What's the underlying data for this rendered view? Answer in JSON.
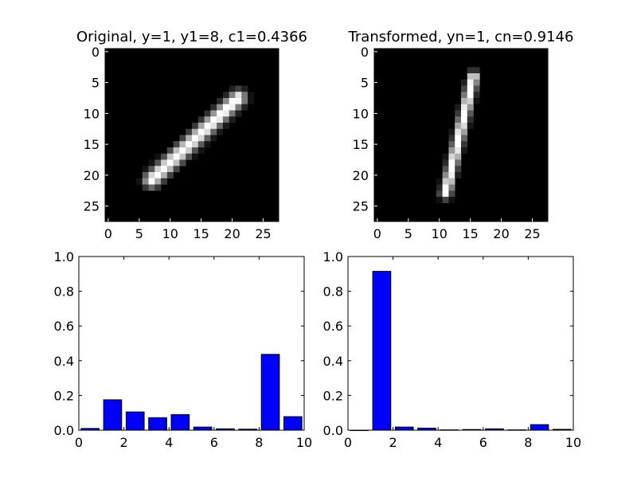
{
  "chart_data": [
    {
      "type": "heatmap",
      "title": "Original, y=1, y1=8, c1=0.4366",
      "xticks": [
        "0",
        "5",
        "10",
        "15",
        "20",
        "25"
      ],
      "yticks": [
        "0",
        "5",
        "10",
        "15",
        "20",
        "25"
      ],
      "xlim": [
        -0.5,
        27.5
      ],
      "ylim": [
        27.5,
        -0.5
      ],
      "colormap": "gray",
      "background_color": "#000000",
      "stroke": {
        "p0": [
          21,
          7.5
        ],
        "p1": [
          7,
          20.8
        ],
        "thickness": 1.6
      }
    },
    {
      "type": "heatmap",
      "title": "Transformed, yn=1, cn=0.9146",
      "xticks": [
        "0",
        "5",
        "10",
        "15",
        "20",
        "25"
      ],
      "yticks": [
        "0",
        "5",
        "10",
        "15",
        "20",
        "25"
      ],
      "xlim": [
        -0.5,
        27.5
      ],
      "ylim": [
        27.5,
        -0.5
      ],
      "colormap": "gray",
      "background_color": "#000000",
      "stroke": {
        "p0": [
          15.5,
          4
        ],
        "p1": [
          11,
          23
        ],
        "thickness": 1.1
      }
    },
    {
      "type": "bar",
      "categories": [
        0,
        1,
        2,
        3,
        4,
        5,
        6,
        7,
        8,
        9
      ],
      "values": [
        0.01,
        0.175,
        0.105,
        0.072,
        0.09,
        0.018,
        0.008,
        0.006,
        0.4366,
        0.078
      ],
      "xticks": [
        "0",
        "2",
        "4",
        "6",
        "8",
        "10"
      ],
      "yticks": [
        "0.0",
        "0.2",
        "0.4",
        "0.6",
        "0.8",
        "1.0"
      ],
      "xlim": [
        0,
        10
      ],
      "ylim": [
        0,
        1
      ],
      "bar_color": "#0000ff"
    },
    {
      "type": "bar",
      "categories": [
        0,
        1,
        2,
        3,
        4,
        5,
        6,
        7,
        8,
        9
      ],
      "values": [
        0.0,
        0.9146,
        0.018,
        0.012,
        0.002,
        0.004,
        0.008,
        0.002,
        0.032,
        0.005
      ],
      "xticks": [
        "0",
        "2",
        "4",
        "6",
        "8",
        "10"
      ],
      "yticks": [
        "0.0",
        "0.2",
        "0.4",
        "0.6",
        "0.8",
        "1.0"
      ],
      "xlim": [
        0,
        10
      ],
      "ylim": [
        0,
        1
      ],
      "bar_color": "#0000ff"
    }
  ]
}
